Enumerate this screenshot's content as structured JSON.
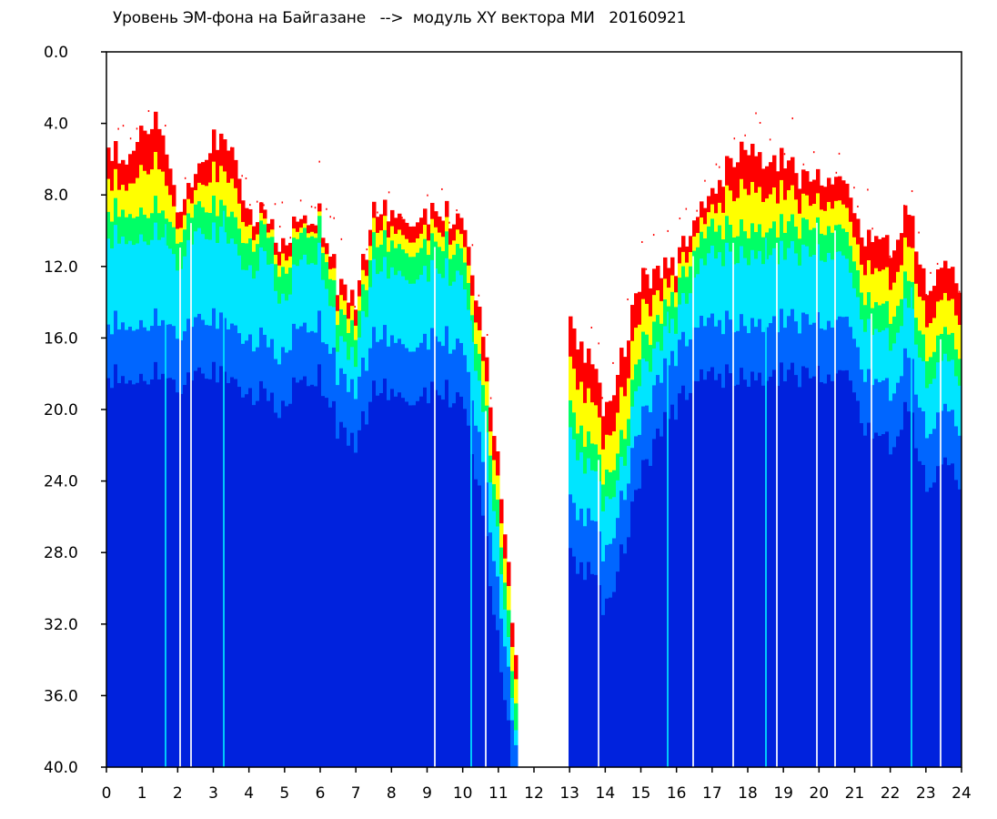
{
  "chart_data": {
    "type": "heatmap",
    "title": "Уровень ЭМ-фона на Байгазане   -->  модуль XY вектора МИ   20160921",
    "xlabel": "",
    "ylabel": "",
    "xlim": [
      0,
      24
    ],
    "ylim": [
      0,
      40
    ],
    "y_inverted": true,
    "x_ticks": [
      "0",
      "1",
      "2",
      "3",
      "4",
      "5",
      "6",
      "7",
      "8",
      "9",
      "10",
      "11",
      "12",
      "13",
      "14",
      "15",
      "16",
      "17",
      "18",
      "19",
      "20",
      "21",
      "22",
      "23",
      "24"
    ],
    "y_ticks": [
      "0.0",
      "4.0",
      "8.0",
      "12.0",
      "16.0",
      "20.0",
      "24.0",
      "28.0",
      "32.0",
      "36.0",
      "40.0"
    ],
    "colorscale": [
      "#ffffff",
      "#ff0000",
      "#ffff00",
      "#00ff66",
      "#00e5ff",
      "#0066ff",
      "#0022dd"
    ],
    "grid": false,
    "level_profile": {
      "hours": [
        0,
        0.5,
        1,
        1.5,
        2,
        2.5,
        3,
        3.5,
        4,
        4.5,
        5,
        5.5,
        6,
        6.5,
        7,
        7.5,
        8,
        8.5,
        9,
        9.5,
        10,
        10.5,
        11,
        11.5,
        12,
        12.5,
        13,
        13.5,
        14,
        14.5,
        15,
        15.5,
        16,
        16.5,
        17,
        17.5,
        18,
        18.5,
        19,
        19.5,
        20,
        20.5,
        21,
        21.5,
        22,
        22.5,
        23,
        23.5,
        24
      ],
      "red_onset": [
        5,
        6,
        4,
        4,
        9,
        7,
        5,
        5,
        9,
        9,
        11,
        9,
        9,
        13,
        14,
        9,
        9,
        9,
        9,
        9,
        10,
        15,
        23,
        34,
        null,
        null,
        15,
        17,
        20,
        17,
        13,
        12,
        12,
        9,
        8,
        6,
        5,
        6,
        6,
        7,
        7,
        7,
        9,
        11,
        11,
        9,
        13,
        12,
        13
      ],
      "green_level": [
        9,
        9,
        9,
        9,
        11,
        9,
        9,
        9,
        11,
        10,
        13,
        10,
        10,
        15,
        16,
        11,
        11,
        11,
        11,
        11,
        12,
        18,
        26,
        37,
        null,
        null,
        20,
        22,
        24,
        22,
        17,
        15,
        14,
        11,
        10,
        10,
        10,
        10,
        10,
        10,
        10,
        10,
        12,
        15,
        15,
        13,
        17,
        16,
        17
      ],
      "deep_blue_level": [
        15,
        15,
        15,
        15,
        16,
        15,
        15,
        15,
        16,
        16,
        17,
        15,
        15,
        18,
        19,
        16,
        16,
        16,
        16,
        16,
        17,
        22,
        30,
        39,
        null,
        null,
        25,
        26,
        28,
        25,
        21,
        18,
        17,
        15,
        15,
        15,
        15,
        15,
        15,
        15,
        15,
        15,
        16,
        19,
        19,
        17,
        21,
        20,
        21
      ]
    }
  }
}
